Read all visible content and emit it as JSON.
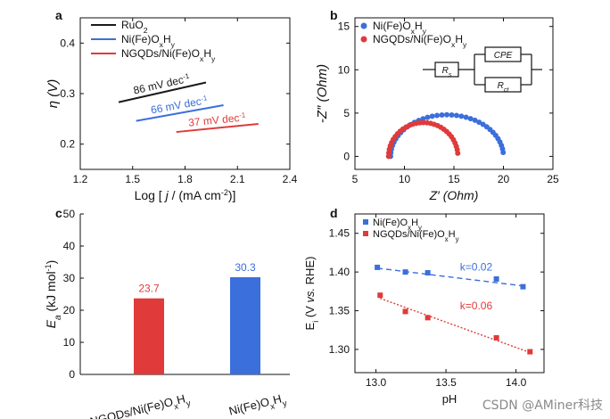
{
  "watermark": "CSDN @AMiner科技",
  "colors": {
    "black": "#1a1a1a",
    "blue": "#3a6fdc",
    "red": "#e03a3a",
    "axis": "#111111"
  },
  "chart_data": [
    {
      "panel": "a",
      "type": "line",
      "xlabel_parts": [
        "Log [ ",
        "j",
        " / (mA cm",
        "-2",
        ")]"
      ],
      "ylabel": "η (V)",
      "xlim": [
        1.2,
        2.4
      ],
      "ylim": [
        0.15,
        0.45
      ],
      "xticks": [
        1.2,
        1.5,
        1.8,
        2.1,
        2.4
      ],
      "xtick_labels": [
        "1.2",
        "1.5",
        "1.8",
        "2.1",
        "2.4"
      ],
      "yticks": [
        0.2,
        0.3,
        0.4
      ],
      "ytick_labels": [
        "0.2",
        "0.3",
        "0.4"
      ],
      "series": [
        {
          "name": "RuO2",
          "legend_parts": [
            "RuO",
            "2",
            ""
          ],
          "color": "black",
          "x": [
            1.42,
            1.92
          ],
          "y": [
            0.283,
            0.322
          ],
          "annotation": "86 mV dec",
          "annotation_sup": "-1"
        },
        {
          "name": "Ni(Fe)OxHy",
          "legend_parts": [
            "Ni(Fe)O",
            "x",
            "H",
            "y"
          ],
          "color": "blue",
          "x": [
            1.52,
            2.02
          ],
          "y": [
            0.246,
            0.277
          ],
          "annotation": "66 mV dec",
          "annotation_sup": "-1"
        },
        {
          "name": "NGQDs/Ni(Fe)OxHy",
          "legend_parts": [
            "NGQDs/Ni(Fe)O",
            "x",
            "H",
            "y"
          ],
          "color": "red",
          "x": [
            1.75,
            2.22
          ],
          "y": [
            0.224,
            0.24
          ],
          "annotation": "37 mV dec",
          "annotation_sup": "-1"
        }
      ]
    },
    {
      "panel": "b",
      "type": "scatter",
      "xlabel": "Z′ (Ohm)",
      "ylabel": "-Z″ (Ohm)",
      "xlim": [
        5,
        25
      ],
      "ylim": [
        -1.5,
        16
      ],
      "xticks": [
        5,
        10,
        15,
        20,
        25
      ],
      "xtick_labels": [
        "5",
        "10",
        "15",
        "20",
        "25"
      ],
      "yticks": [
        0,
        5,
        10,
        15
      ],
      "ytick_labels": [
        "0",
        "5",
        "10",
        "15"
      ],
      "circuit_labels": {
        "rs": "Rs",
        "rs_main": "R",
        "rs_sub": "s",
        "cpe": "CPE",
        "rct_main": "R",
        "rct_sub": "ct"
      },
      "series": [
        {
          "name": "Ni(Fe)OxHy",
          "legend_parts": [
            "Ni(Fe)O",
            "x",
            "H",
            "y"
          ],
          "color": "blue",
          "arc": {
            "x0": 8.6,
            "x1": 20.0,
            "height": 4.8,
            "n": 36
          }
        },
        {
          "name": "NGQDs/Ni(Fe)OxHy",
          "legend_parts": [
            "NGQDs/Ni(Fe)O",
            "x",
            "H",
            "y"
          ],
          "color": "red",
          "arc": {
            "x0": 8.4,
            "x1": 15.4,
            "height": 3.9,
            "n": 30
          }
        }
      ]
    },
    {
      "panel": "c",
      "type": "bar",
      "ylabel_main": "E",
      "ylabel_sub": "a",
      "ylabel_rest": " (kJ mol",
      "ylabel_sup": "-1",
      "ylabel_end": ")",
      "ylim": [
        0,
        50
      ],
      "yticks": [
        0,
        10,
        20,
        30,
        40,
        50
      ],
      "ytick_labels": [
        "0",
        "10",
        "20",
        "30",
        "40",
        "50"
      ],
      "categories": [
        "NGQDs/Ni(Fe)OxHy",
        "Ni(Fe)OxHy"
      ],
      "category_parts": [
        [
          "NGQDs/Ni(Fe)O",
          "x",
          "H",
          "y"
        ],
        [
          "Ni(Fe)O",
          "x",
          "H",
          "y"
        ]
      ],
      "values": [
        23.7,
        30.3
      ],
      "value_labels": [
        "23.7",
        "30.3"
      ],
      "bar_colors": [
        "red",
        "blue"
      ]
    },
    {
      "panel": "d",
      "type": "scatter",
      "xlabel": "pH",
      "ylabel_main": "E",
      "ylabel_sub": "i",
      "ylabel_rest": " (V ",
      "ylabel_vs": "vs.",
      "ylabel_end": " RHE)",
      "xlim": [
        12.85,
        14.2
      ],
      "ylim": [
        1.27,
        1.475
      ],
      "xticks": [
        13.0,
        13.5,
        14.0
      ],
      "xtick_labels": [
        "13.0",
        "13.5",
        "14.0"
      ],
      "yticks": [
        1.3,
        1.35,
        1.4,
        1.45
      ],
      "ytick_labels": [
        "1.30",
        "1.35",
        "1.40",
        "1.45"
      ],
      "series": [
        {
          "name": "Ni(Fe)OxHy",
          "legend_parts": [
            "Ni(Fe)O",
            "x",
            "H",
            "y"
          ],
          "color": "blue",
          "x": [
            13.01,
            13.21,
            13.37,
            13.86,
            14.05
          ],
          "y": [
            1.406,
            1.4,
            1.399,
            1.391,
            1.381
          ],
          "fit": {
            "x": [
              13.01,
              14.05
            ],
            "y": [
              1.405,
              1.382
            ]
          },
          "annotation": "k=0.02"
        },
        {
          "name": "NGQDs/Ni(Fe)OxHy",
          "legend_parts": [
            "NGQDs/Ni(Fe)O",
            "x",
            "H",
            "y"
          ],
          "color": "red",
          "x": [
            13.03,
            13.21,
            13.37,
            13.86,
            14.1
          ],
          "y": [
            1.37,
            1.349,
            1.341,
            1.315,
            1.297
          ],
          "fit": {
            "x": [
              13.03,
              14.1
            ],
            "y": [
              1.366,
              1.296
            ]
          },
          "annotation": "k=0.06"
        }
      ]
    }
  ],
  "panel_labels": [
    "a",
    "b",
    "c",
    "d"
  ]
}
